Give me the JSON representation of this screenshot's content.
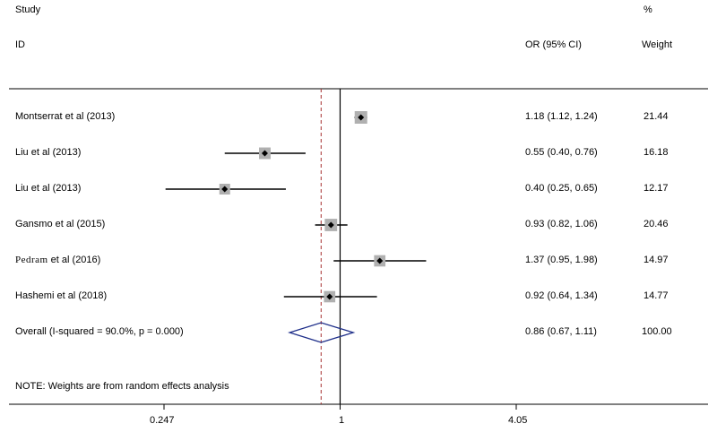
{
  "chart_data": {
    "type": "forest",
    "headers": {
      "study_top": "Study",
      "study_id": "ID",
      "weight_top": "%",
      "or_col": "OR (95% CI)",
      "weight_col": "Weight"
    },
    "studies": [
      {
        "author": "Montserrat et al",
        "year": "(2013)",
        "or": 1.18,
        "lower": 1.12,
        "upper": 1.24,
        "or_text": "1.18 (1.12, 1.24)",
        "weight": "21.44",
        "font": "sans"
      },
      {
        "author": "Liu et al",
        "year": "(2013)",
        "or": 0.55,
        "lower": 0.4,
        "upper": 0.76,
        "or_text": "0.55 (0.40, 0.76)",
        "weight": "16.18",
        "font": "sans"
      },
      {
        "author": "Liu et al",
        "year": "(2013)",
        "or": 0.4,
        "lower": 0.25,
        "upper": 0.65,
        "or_text": "0.40 (0.25, 0.65)",
        "weight": "12.17",
        "font": "sans"
      },
      {
        "author": "Gansmo et al",
        "year": "(2015)",
        "or": 0.93,
        "lower": 0.82,
        "upper": 1.06,
        "or_text": "0.93 (0.82, 1.06)",
        "weight": "20.46",
        "font": "sans"
      },
      {
        "author": "Pedram",
        "author_suffix": "et al",
        "year": "(2016)",
        "or": 1.37,
        "lower": 0.95,
        "upper": 1.98,
        "or_text": "1.37 (0.95, 1.98)",
        "weight": "14.97",
        "font": "serif"
      },
      {
        "author": "Hashemi et al",
        "year": "(2018)",
        "or": 0.92,
        "lower": 0.64,
        "upper": 1.34,
        "or_text": "0.92 (0.64, 1.34)",
        "weight": "14.77",
        "font": "sans"
      }
    ],
    "overall": {
      "label": "Overall  (I-squared = 90.0%, p = 0.000)",
      "or": 0.86,
      "lower": 0.67,
      "upper": 1.11,
      "or_text": "0.86 (0.67, 1.11)",
      "weight": "100.00"
    },
    "note": "NOTE: Weights are from random effects analysis",
    "x_scale": "log",
    "x_ticks": [
      {
        "value": 0.247,
        "label": "0.247"
      },
      {
        "value": 1,
        "label": "1"
      },
      {
        "value": 4.05,
        "label": "4.05"
      }
    ],
    "null_line": 1,
    "colors": {
      "line": "#000000",
      "overall_dash": "#a83232",
      "diamond": "#1f2f8a",
      "box": "#b0b0b0"
    }
  }
}
